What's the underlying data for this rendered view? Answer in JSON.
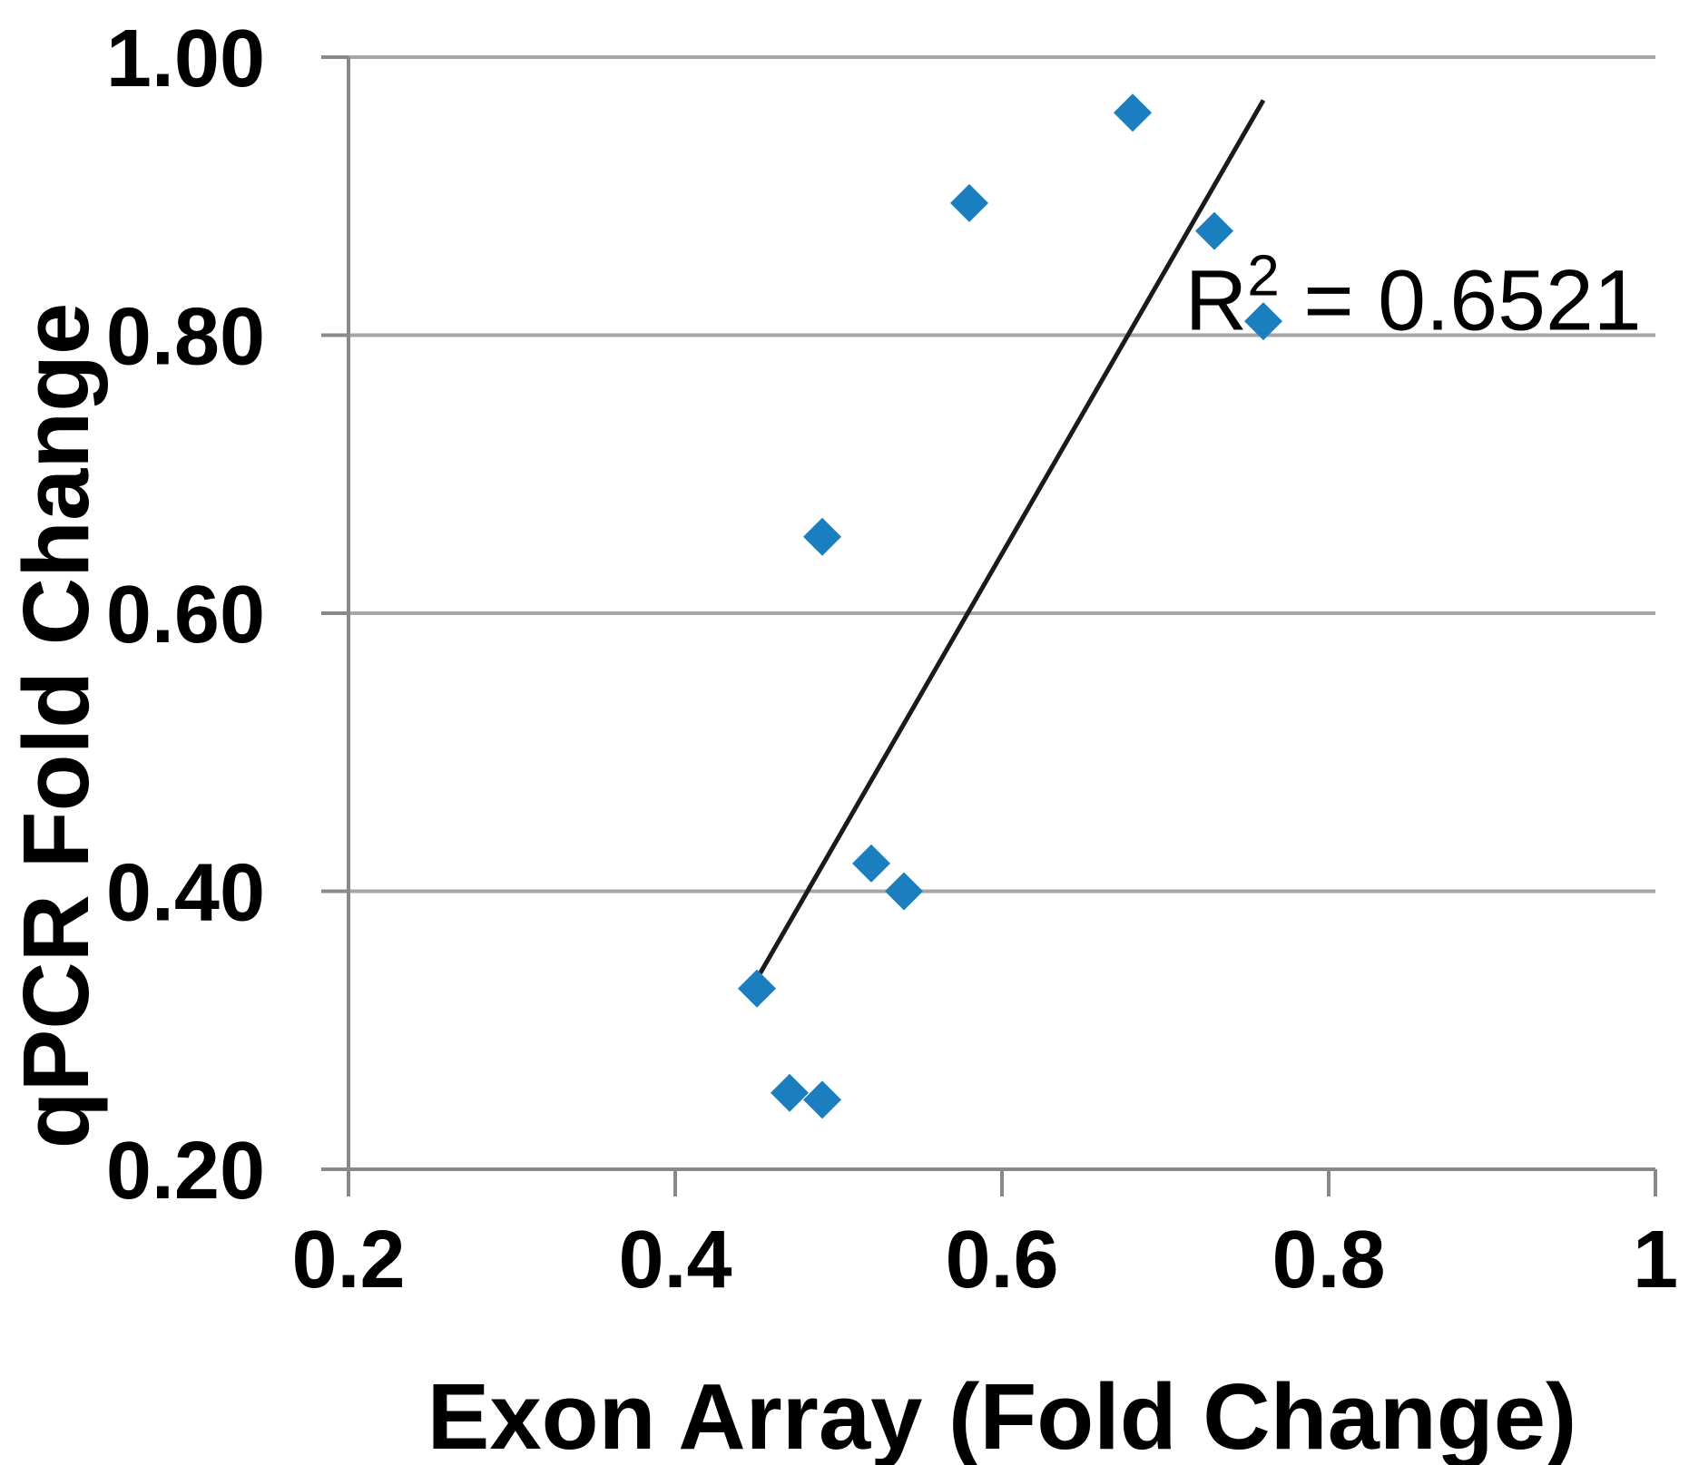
{
  "chart_data": {
    "type": "scatter",
    "title": "",
    "xlabel": "Exon Array (Fold Change)",
    "ylabel": "qPCR Fold Change",
    "xlim": [
      0.2,
      1.0
    ],
    "ylim": [
      0.2,
      1.0
    ],
    "grid": "horizontal-only",
    "legend": "none",
    "x_ticks": {
      "values": [
        0.2,
        0.4,
        0.6,
        0.8,
        1.0
      ],
      "labels": [
        "0.2",
        "0.4",
        "0.6",
        "0.8",
        "1"
      ]
    },
    "y_ticks": {
      "values": [
        0.2,
        0.4,
        0.6,
        0.8,
        1.0
      ],
      "labels": [
        "0.20",
        "0.40",
        "0.60",
        "0.80",
        "1.00"
      ]
    },
    "series": [
      {
        "marker": "diamond",
        "color": "#1B7EBE",
        "points": [
          [
            0.45,
            0.33
          ],
          [
            0.47,
            0.255
          ],
          [
            0.49,
            0.25
          ],
          [
            0.49,
            0.655
          ],
          [
            0.52,
            0.42
          ],
          [
            0.54,
            0.4
          ],
          [
            0.58,
            0.895
          ],
          [
            0.68,
            0.96
          ],
          [
            0.73,
            0.875
          ],
          [
            0.76,
            0.81
          ]
        ]
      }
    ],
    "trendline": {
      "x_start": 0.452,
      "y_start": 0.341,
      "x_end": 0.76,
      "y_end": 0.969,
      "r_squared": 0.6521,
      "color": "#1A1A1A"
    },
    "annotation": {
      "base": "R",
      "superscript": "2",
      "rest": " = 0.6521",
      "x": 0.712,
      "y_baseline": 0.804
    },
    "colors": {
      "marker": "#1B7EBE",
      "gridline": "#A6A6A6",
      "axis": "#898989",
      "trendline": "#1A1A1A",
      "text": "#000000",
      "background": "#FFFFFF"
    }
  }
}
